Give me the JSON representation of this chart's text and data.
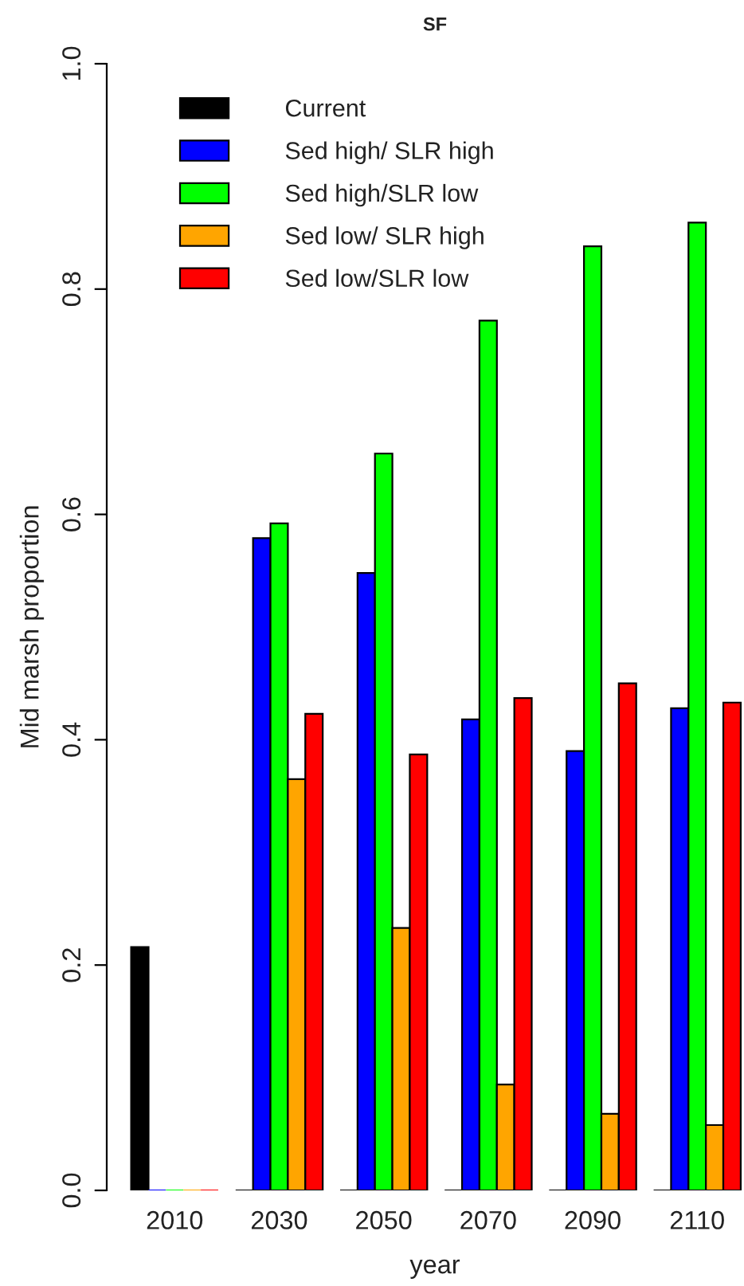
{
  "chart_data": {
    "type": "bar",
    "title": "SF",
    "xlabel": "year",
    "ylabel": "Mid marsh proportion",
    "categories": [
      "2010",
      "2030",
      "2050",
      "2070",
      "2090",
      "2110"
    ],
    "series": [
      {
        "name": "Current",
        "color": "#000000",
        "values": [
          0.216,
          0,
          0,
          0,
          0,
          0
        ]
      },
      {
        "name": "Sed high/ SLR high",
        "color": "#0000ff",
        "values": [
          0,
          0.579,
          0.548,
          0.418,
          0.39,
          0.428
        ]
      },
      {
        "name": "Sed high/SLR low",
        "color": "#00ff00",
        "values": [
          0,
          0.592,
          0.654,
          0.772,
          0.838,
          0.859
        ]
      },
      {
        "name": "Sed low/ SLR high",
        "color": "#ffa500",
        "values": [
          0,
          0.365,
          0.233,
          0.094,
          0.068,
          0.058
        ]
      },
      {
        "name": "Sed low/SLR low",
        "color": "#ff0000",
        "values": [
          0,
          0.423,
          0.387,
          0.437,
          0.45,
          0.433
        ]
      }
    ],
    "ylim": [
      0,
      1
    ],
    "yticks": [
      {
        "value": 0,
        "label": "0.0"
      },
      0.2,
      0.4,
      0.6,
      0.8,
      {
        "value": 1,
        "label": "1.0"
      }
    ],
    "legend": "top left"
  }
}
